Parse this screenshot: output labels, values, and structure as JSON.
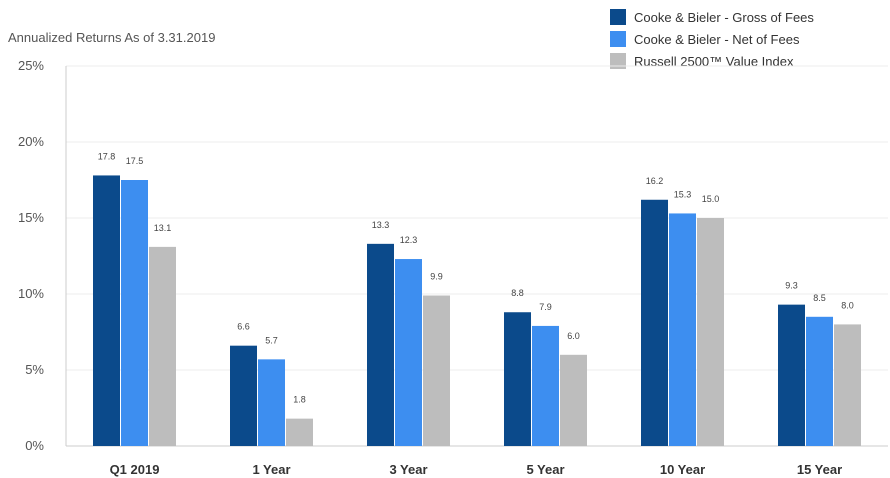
{
  "chart_data": {
    "type": "bar",
    "title": "",
    "subtitle": "Annualized Returns As of 3.31.2019",
    "xlabel": "",
    "ylabel": "",
    "ylim": [
      0,
      25
    ],
    "yticks": [
      0,
      5,
      10,
      15,
      20,
      25
    ],
    "ytick_labels": [
      "0%",
      "5%",
      "10%",
      "15%",
      "20%",
      "25%"
    ],
    "categories": [
      "Q1 2019",
      "1 Year",
      "3 Year",
      "5 Year",
      "10 Year",
      "15 Year"
    ],
    "series": [
      {
        "name": "Cooke & Bieler - Gross of Fees",
        "color": "#0b4a8b",
        "values": [
          17.8,
          6.6,
          13.3,
          8.8,
          16.2,
          9.3
        ]
      },
      {
        "name": "Cooke & Bieler - Net of Fees",
        "color": "#3d8ef0",
        "values": [
          17.5,
          5.7,
          12.3,
          7.9,
          15.3,
          8.5
        ]
      },
      {
        "name": "Russell 2500™ Value Index",
        "color": "#bdbdbd",
        "values": [
          13.1,
          1.8,
          9.9,
          6.0,
          15.0,
          8.0
        ]
      }
    ],
    "value_labels": [
      [
        "17.8",
        "6.6",
        "13.3",
        "8.8",
        "16.2",
        "9.3"
      ],
      [
        "17.5",
        "5.7",
        "12.3",
        "7.9",
        "15.3",
        "8.5"
      ],
      [
        "13.1",
        "1.8",
        "9.9",
        "6.0",
        "15.0",
        "8.0"
      ]
    ],
    "grid": true,
    "legend_position": "top-right"
  }
}
